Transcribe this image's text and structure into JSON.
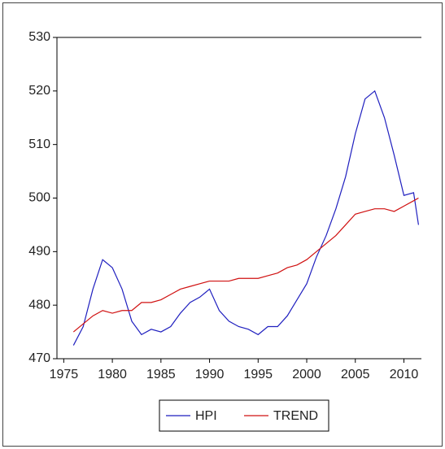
{
  "chart_data": {
    "type": "line",
    "x": [
      1976,
      1977,
      1978,
      1979,
      1980,
      1981,
      1982,
      1983,
      1984,
      1985,
      1986,
      1987,
      1988,
      1989,
      1990,
      1991,
      1992,
      1993,
      1994,
      1995,
      1996,
      1997,
      1998,
      1999,
      2000,
      2001,
      2002,
      2003,
      2004,
      2005,
      2006,
      2007,
      2008,
      2009,
      2010,
      2011,
      2011.5
    ],
    "series": [
      {
        "name": "HPI",
        "color": "#1f1fbf",
        "values": [
          472.5,
          476,
          483,
          488.5,
          487,
          483,
          477,
          474.5,
          475.5,
          475,
          476,
          478.5,
          480.5,
          481.5,
          483,
          479,
          477,
          476,
          475.5,
          474.5,
          476,
          476,
          478,
          481,
          484,
          489,
          493,
          498,
          504,
          512,
          518.5,
          520,
          515,
          508,
          500.5,
          501,
          495
        ]
      },
      {
        "name": "TREND",
        "color": "#d01010",
        "values": [
          475,
          476.5,
          478,
          479,
          478.5,
          479,
          479,
          480.5,
          480.5,
          481,
          482,
          483,
          483.5,
          484,
          484.5,
          484.5,
          484.5,
          485,
          485,
          485,
          485.5,
          486,
          487,
          487.5,
          488.5,
          490,
          491.5,
          493,
          495,
          497,
          497.5,
          498,
          498,
          497.5,
          498.5,
          499.5,
          500
        ]
      }
    ],
    "xlim": [
      1974.3,
      2011.8
    ],
    "ylim": [
      470,
      530
    ],
    "xticks": [
      1975,
      1980,
      1985,
      1990,
      1995,
      2000,
      2005,
      2010
    ],
    "yticks": [
      470,
      480,
      490,
      500,
      510,
      520,
      530
    ]
  }
}
